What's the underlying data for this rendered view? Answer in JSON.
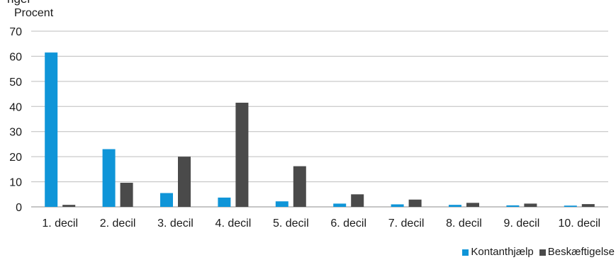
{
  "header": {
    "title_fragment": "nger",
    "unit": "Procent"
  },
  "chart_data": {
    "type": "bar",
    "categories": [
      "1. decil",
      "2. decil",
      "3. decil",
      "4. decil",
      "5. decil",
      "6. decil",
      "7. decil",
      "8. decil",
      "9. decil",
      "10. decil"
    ],
    "series": [
      {
        "name": "Kontanthjælp",
        "color": "#0f95d8",
        "values": [
          61.5,
          23.0,
          5.5,
          3.7,
          2.2,
          1.3,
          1.0,
          0.8,
          0.6,
          0.5
        ]
      },
      {
        "name": "Beskæftigelse",
        "color": "#4a4a4a",
        "values": [
          0.8,
          9.6,
          20.0,
          41.5,
          16.2,
          5.0,
          2.9,
          1.6,
          1.3,
          1.1
        ]
      }
    ],
    "yticks": [
      "0",
      "10",
      "20",
      "30",
      "40",
      "50",
      "60",
      "70"
    ],
    "ylim": [
      0,
      70
    ],
    "ylabel": "Procent",
    "grid": true,
    "legend_position": "bottom-right"
  },
  "legend": {
    "items": [
      {
        "label": "Kontanthjælp",
        "color": "#0f95d8"
      },
      {
        "label": "Beskæftigelse",
        "color": "#4a4a4a"
      }
    ]
  }
}
